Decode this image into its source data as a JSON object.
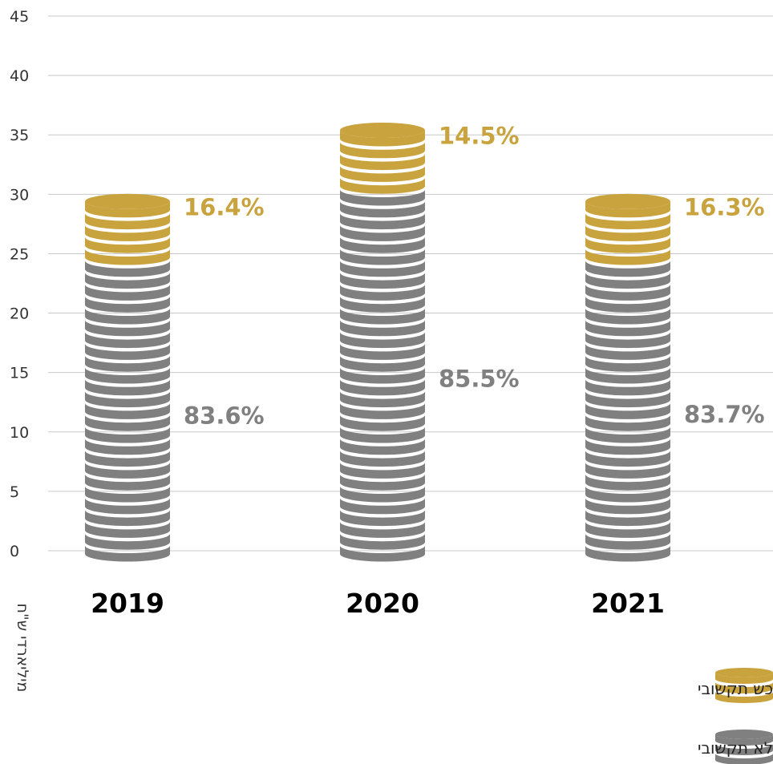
{
  "chart_data": {
    "type": "bar",
    "stacked": true,
    "categories": [
      "2019",
      "2020",
      "2021"
    ],
    "ylabel": "מיליארדי ש\"ח",
    "ylim": [
      0,
      45
    ],
    "yticks": [
      0,
      5,
      10,
      15,
      20,
      25,
      30,
      35,
      40,
      45
    ],
    "grid": true,
    "series": [
      {
        "name": "רכש לא תקשובי",
        "color": "#808080",
        "values": [
          24.1,
          30.3,
          24.3
        ],
        "labels": [
          "83.6%",
          "85.5%",
          "83.7%"
        ]
      },
      {
        "name": "רכש תקשובי",
        "color": "#C9A33E",
        "values": [
          4.7,
          5.1,
          4.7
        ],
        "labels": [
          "16.4%",
          "14.5%",
          "16.3%"
        ]
      }
    ],
    "legend_position": "bottom-right"
  }
}
